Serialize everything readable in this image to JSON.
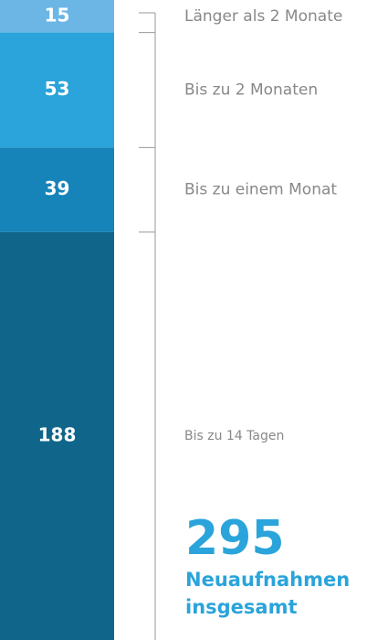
{
  "chart_data": {
    "type": "stacked_bar",
    "series": [
      {
        "name": "Bis zu 14 Tagen",
        "color": "#10668a",
        "values": [
          188
        ]
      },
      {
        "name": "Bis zu einem Monat",
        "color": "#1684b8",
        "values": [
          39
        ]
      },
      {
        "name": "Bis zu 2 Monaten",
        "color": "#2aa4da",
        "values": [
          53
        ]
      },
      {
        "name": "Länger als 2 Monate",
        "color": "#6cb6e6",
        "values": [
          15
        ]
      }
    ],
    "ylim": [
      0,
      295
    ],
    "total": 295,
    "total_label": [
      "Neuaufnahmen",
      "insgesamt"
    ],
    "total_color": "#2aa4da"
  }
}
